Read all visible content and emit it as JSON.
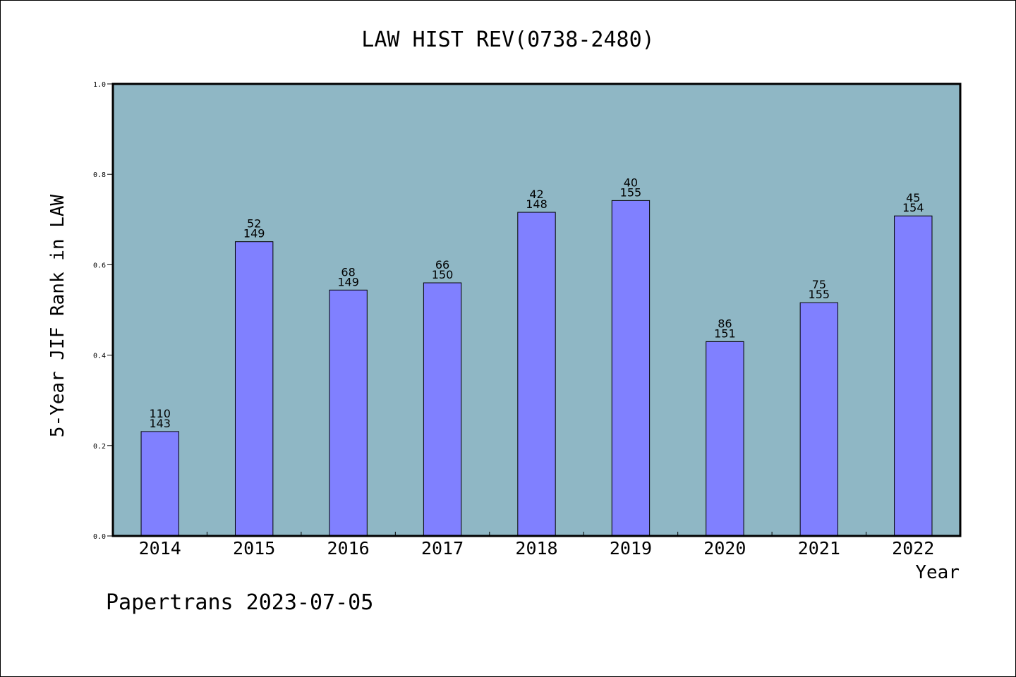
{
  "chart_data": {
    "type": "bar",
    "title": "LAW HIST REV(0738-2480)",
    "xlabel": "Year",
    "ylabel": "5-Year JIF Rank in LAW",
    "ylim": [
      0,
      1.0
    ],
    "yticks": [
      "0.0",
      "0.2",
      "0.4",
      "0.6",
      "0.8",
      "1.0"
    ],
    "grid": false,
    "categories": [
      "2014",
      "2015",
      "2016",
      "2017",
      "2018",
      "2019",
      "2020",
      "2021",
      "2022"
    ],
    "values": [
      0.231,
      0.651,
      0.544,
      0.56,
      0.716,
      0.742,
      0.43,
      0.516,
      0.708
    ],
    "rank_labels": [
      "110",
      "52",
      "68",
      "66",
      "42",
      "40",
      "86",
      "75",
      "45"
    ],
    "total_labels": [
      "143",
      "149",
      "149",
      "150",
      "148",
      "155",
      "151",
      "155",
      "154"
    ],
    "colors": {
      "plot_background": "#8fb7c5",
      "bar_fill": "#8080ff",
      "bar_stroke": "#000000"
    }
  },
  "footer": {
    "text": "Papertrans 2023-07-05"
  }
}
